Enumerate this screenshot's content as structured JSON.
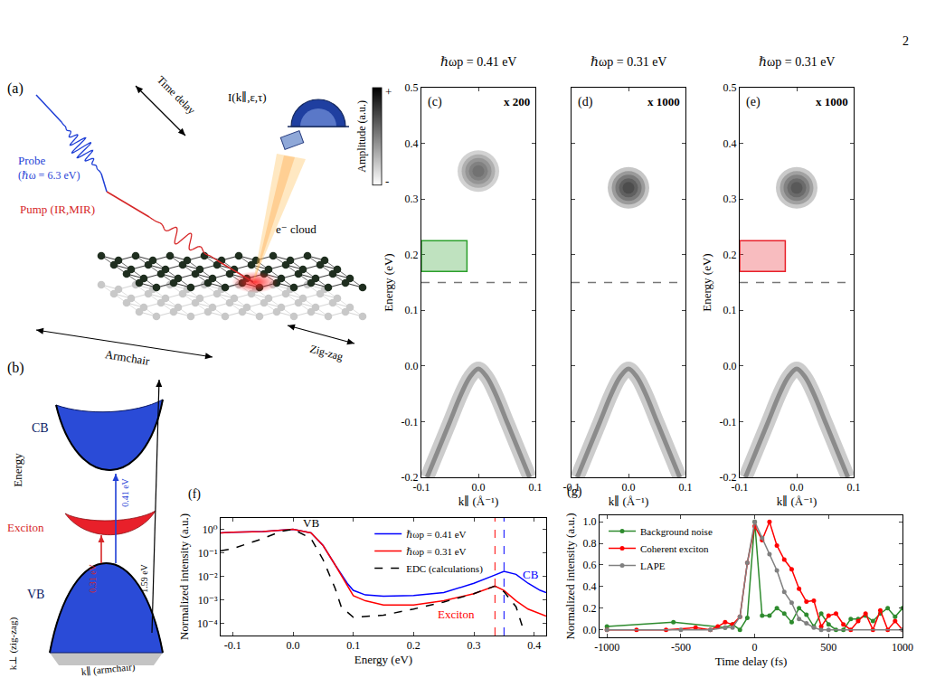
{
  "page_number": "2",
  "diagram_a": {
    "label": "(a)",
    "probe": "Probe",
    "probe_energy": "(ℏω = 6.3 eV)",
    "pump": "Pump (IR,MIR)",
    "time_delay": "Time delay",
    "detector": "I(k∥,ε,τ)",
    "electrons": "e⁻ cloud",
    "armchair": "Armchair",
    "zigzag": "Zig-zag"
  },
  "diagram_b": {
    "label": "(b)",
    "cb": "CB",
    "exciton": "Exciton",
    "vb": "VB",
    "transitions": [
      {
        "text": "0.31 eV",
        "color": "#d62728"
      },
      {
        "text": "0.41 eV",
        "color": "#1f3fd6"
      },
      {
        "text": "1.59 eV",
        "color": "#000000"
      }
    ],
    "y_label": "Energy",
    "k_armchair": "k∥ (armchair)",
    "k_zigzag": "k⊥ (zig-zag)"
  },
  "chart_data": [
    {
      "type": "image",
      "label": "(c)",
      "title": "ℏωp = 0.41 eV",
      "scale_label": "x 200",
      "x_label": "k∥ (Å⁻¹)",
      "y_label": "Energy (eV)",
      "xlim": [
        -0.1,
        0.1
      ],
      "ylim": [
        -0.2,
        0.5
      ],
      "xticks": [
        -0.1,
        {
          "value": 0,
          "label": "0.0"
        },
        0.1
      ],
      "yticks": [
        -0.2,
        -0.1,
        {
          "value": 0,
          "label": "0.0"
        },
        0.1,
        0.2,
        0.3,
        0.4,
        0.5
      ],
      "divider": 0.15,
      "colorbar": {
        "label": "Amplitude (a.u.)",
        "ticks": [
          "+",
          "-"
        ]
      },
      "band": {
        "k": [
          -0.09,
          -0.07,
          -0.05,
          -0.03,
          -0.015,
          0,
          0.015,
          0.03,
          0.05,
          0.07,
          0.09
        ],
        "energy": [
          -0.2,
          -0.15,
          -0.1,
          -0.05,
          -0.02,
          -0.005,
          -0.02,
          -0.05,
          -0.1,
          -0.15,
          -0.2
        ],
        "color": "#555555"
      },
      "exciton": {
        "k": 0,
        "energy": 0.35,
        "color": "#444444"
      },
      "box": {
        "k": [
          -0.1,
          -0.02
        ],
        "energy": [
          0.17,
          0.225
        ],
        "color": "#2ca02c"
      }
    },
    {
      "type": "image",
      "label": "(d)",
      "title": "ℏωp = 0.31 eV",
      "scale_label": "x 1000",
      "x_label": "k∥ (Å⁻¹)",
      "tick_labels": "x",
      "xlim": [
        -0.1,
        0.1
      ],
      "ylim": [
        -0.2,
        0.5
      ],
      "xticks": [
        -0.1,
        {
          "value": 0,
          "label": "0.0"
        },
        0.1
      ],
      "yticks": [
        -0.2,
        -0.1,
        {
          "value": 0,
          "label": "0.0"
        },
        0.1,
        0.2,
        0.3,
        0.4,
        0.5
      ],
      "divider": 0.15,
      "band": {
        "k": [
          -0.09,
          -0.07,
          -0.05,
          -0.03,
          -0.015,
          0,
          0.015,
          0.03,
          0.05,
          0.07,
          0.09
        ],
        "energy": [
          -0.2,
          -0.15,
          -0.1,
          -0.05,
          -0.02,
          -0.005,
          -0.02,
          -0.05,
          -0.1,
          -0.15,
          -0.2
        ],
        "color": "#555555"
      },
      "exciton": {
        "k": 0,
        "energy": 0.32,
        "color": "#111111"
      }
    },
    {
      "type": "image",
      "label": "(e)",
      "title": "ℏωp = 0.31 eV",
      "scale_label": "x 1000",
      "x_label": "k∥ (Å⁻¹)",
      "y_label": "Energy (eV)",
      "xlim": [
        -0.1,
        0.1
      ],
      "ylim": [
        -0.2,
        0.5
      ],
      "xticks": [
        -0.1,
        {
          "value": 0,
          "label": "0.0"
        },
        0.1
      ],
      "yticks": [
        -0.2,
        -0.1,
        {
          "value": 0,
          "label": "0.0"
        },
        0.1,
        0.2,
        0.3,
        0.4,
        0.5
      ],
      "divider": 0.15,
      "band": {
        "k": [
          -0.09,
          -0.07,
          -0.05,
          -0.03,
          -0.015,
          0,
          0.015,
          0.03,
          0.05,
          0.07,
          0.09
        ],
        "energy": [
          -0.2,
          -0.15,
          -0.1,
          -0.05,
          -0.02,
          -0.005,
          -0.02,
          -0.05,
          -0.1,
          -0.15,
          -0.2
        ],
        "color": "#555555"
      },
      "exciton": {
        "k": 0,
        "energy": 0.32,
        "color": "#222222"
      },
      "box": {
        "k": [
          -0.1,
          -0.02
        ],
        "energy": [
          0.17,
          0.225
        ],
        "color": "#e8202a"
      }
    },
    {
      "type": "line",
      "label": "(f)",
      "x_label": "Energy (eV)",
      "y_label": "Normalized intensity (a.u.)",
      "log": "y",
      "legend": "upper right",
      "xlim": [
        -0.12,
        0.42
      ],
      "ylim": [
        3e-05,
        3
      ],
      "xticks": [
        -0.1,
        {
          "value": 0,
          "label": "0.0"
        },
        0.1,
        0.2,
        0.3,
        0.4
      ],
      "yticks": [
        {
          "value": 0.0001,
          "label": "10⁻⁴"
        },
        {
          "value": 0.001,
          "label": "10⁻³"
        },
        {
          "value": 0.01,
          "label": "10⁻²"
        },
        {
          "value": 0.1,
          "label": "10⁻¹"
        },
        {
          "value": 1,
          "label": "10⁰"
        }
      ],
      "series": [
        {
          "name": "ℏωp = 0.41 eV",
          "color": "#0000ff",
          "peak": 0.35,
          "x": [
            -0.12,
            -0.1,
            -0.05,
            0,
            0.03,
            0.05,
            0.07,
            0.09,
            0.1,
            0.12,
            0.15,
            0.2,
            0.25,
            0.3,
            0.33,
            0.35,
            0.37,
            0.39,
            0.41,
            0.42
          ],
          "values": [
            0.7,
            0.75,
            0.8,
            1.0,
            0.7,
            0.2,
            0.03,
            0.005,
            0.0025,
            0.0016,
            0.0014,
            0.0015,
            0.002,
            0.005,
            0.01,
            0.016,
            0.012,
            0.005,
            0.0025,
            0.002
          ]
        },
        {
          "name": "ℏωp = 0.31 eV",
          "color": "#ff0000",
          "peak": 0.335,
          "x": [
            -0.12,
            -0.1,
            -0.05,
            0,
            0.03,
            0.05,
            0.07,
            0.09,
            0.1,
            0.12,
            0.15,
            0.2,
            0.25,
            0.3,
            0.32,
            0.335,
            0.35,
            0.37,
            0.39,
            0.41,
            0.42
          ],
          "values": [
            0.7,
            0.75,
            0.8,
            1.0,
            0.7,
            0.2,
            0.03,
            0.004,
            0.0015,
            0.0009,
            0.0006,
            0.0006,
            0.0009,
            0.0018,
            0.0028,
            0.0038,
            0.0025,
            0.0009,
            0.0004,
            0.00025,
            0.0002
          ]
        },
        {
          "name": "EDC (calculations)",
          "color": "#000000",
          "line_style": "dashed",
          "x": [
            -0.12,
            -0.1,
            -0.05,
            -0.02,
            0,
            0.03,
            0.05,
            0.07,
            0.08,
            0.1,
            0.15,
            0.2,
            0.25,
            0.3,
            0.32,
            0.335,
            0.35,
            0.37,
            0.38
          ],
          "values": [
            0.12,
            0.15,
            0.4,
            0.8,
            1.0,
            0.4,
            0.05,
            0.003,
            0.0005,
            0.00018,
            0.00022,
            0.0004,
            0.0008,
            0.0018,
            0.0028,
            0.0038,
            0.0022,
            0.0005,
            8e-05
          ]
        }
      ],
      "annotations": [
        {
          "text": "VB",
          "x": 0.03,
          "y": 1.8,
          "color": "#000000"
        },
        {
          "text": "CB",
          "x": 0.395,
          "y": 0.012,
          "color": "#0000ff"
        },
        {
          "text": "Exciton",
          "x": 0.27,
          "y": 0.00025,
          "color": "#ff0000"
        }
      ]
    },
    {
      "type": "line",
      "label": "(g)",
      "x_label": "Time delay (fs)",
      "y_label": "Normalized intensity (a.u.)",
      "legend": "upper left",
      "marker": "circle",
      "xlim": [
        -1050,
        1000
      ],
      "ylim": [
        -0.07,
        1.06
      ],
      "xticks": [
        -1000,
        -500,
        0,
        500,
        1000
      ],
      "yticks": [
        {
          "value": 0,
          "label": "0.0"
        },
        0.2,
        0.4,
        0.6,
        0.8,
        {
          "value": 1,
          "label": "1.0"
        }
      ],
      "series": [
        {
          "name": "Background noise",
          "color": "#2e8b2e",
          "x": [
            -1000,
            -550,
            -200,
            -150,
            -100,
            -50,
            0,
            50,
            100,
            150,
            200,
            250,
            300,
            350,
            400,
            450,
            500,
            550,
            600,
            650,
            700,
            750,
            800,
            850,
            900,
            950,
            1000
          ],
          "values": [
            0.03,
            0.07,
            0.02,
            0.05,
            0.0,
            0.11,
            1.0,
            0.13,
            0.13,
            0.2,
            0.15,
            0.07,
            0.2,
            0.14,
            0.03,
            0.15,
            0.05,
            0.0,
            0.0,
            0.1,
            0.1,
            0.13,
            0.08,
            0.15,
            0.2,
            0.12,
            0.2
          ]
        },
        {
          "name": "Coherent exciton",
          "color": "#ff0000",
          "x": [
            -1000,
            -800,
            -600,
            -400,
            -300,
            -250,
            -200,
            -150,
            -100,
            -50,
            0,
            50,
            100,
            150,
            200,
            250,
            300,
            350,
            400,
            450,
            500,
            550,
            600,
            650,
            700,
            750,
            800,
            850,
            900,
            950,
            1000
          ],
          "values": [
            0,
            0,
            0,
            0.02,
            0,
            0.03,
            0.07,
            0.05,
            0.12,
            0.62,
            0.96,
            0.83,
            1.0,
            0.78,
            0.65,
            0.56,
            0.38,
            0.26,
            0.27,
            0.03,
            0.13,
            0.15,
            0.05,
            0,
            0.08,
            0.15,
            0,
            0.18,
            0,
            0.08,
            0
          ]
        },
        {
          "name": "LAPE",
          "color": "#808080",
          "x": [
            -1000,
            -500,
            -300,
            -200,
            -150,
            -100,
            -50,
            0,
            50,
            100,
            150,
            200,
            250,
            300,
            350,
            400,
            450,
            500,
            1000
          ],
          "values": [
            0,
            0,
            0,
            0.02,
            0.02,
            0.12,
            0.62,
            1.0,
            0.85,
            0.7,
            0.55,
            0.35,
            0.25,
            0.1,
            0.06,
            0.02,
            0,
            0,
            0
          ]
        }
      ]
    }
  ]
}
